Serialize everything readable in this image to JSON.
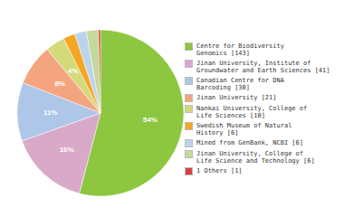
{
  "chart_data": {
    "type": "pie",
    "categories": [
      "Centre for Biodiversity\nGenomics [143]",
      "Jinan University, Institute of\nGroundwater and Earth Sciences [41]",
      "Canadian Centre for DNA\nBarcoding [30]",
      "Jinan University [21]",
      "Nankai University, College of\nLife Sciences [10]",
      "Swedish Museum of Natural\nHistory [6]",
      "Mined from GenBank, NCBI [6]",
      "Jinan University, College of\nLife Science and Technology [6]",
      "1 Others [1]"
    ],
    "values": [
      54.2,
      15.5,
      11.4,
      8,
      3.8,
      2.3,
      2.3,
      2.3,
      0.4
    ],
    "value_labels": [
      "54%",
      "16%",
      "11%",
      "8%",
      "4%",
      null,
      null,
      null,
      null
    ],
    "colors": [
      "#8dc63f",
      "#d9a9c8",
      "#aec6e8",
      "#f4a580",
      "#d4d97a",
      "#f5a623",
      "#bbd4ea",
      "#c5d99a",
      "#d94040"
    ],
    "data_labels": true,
    "legend": "right"
  }
}
